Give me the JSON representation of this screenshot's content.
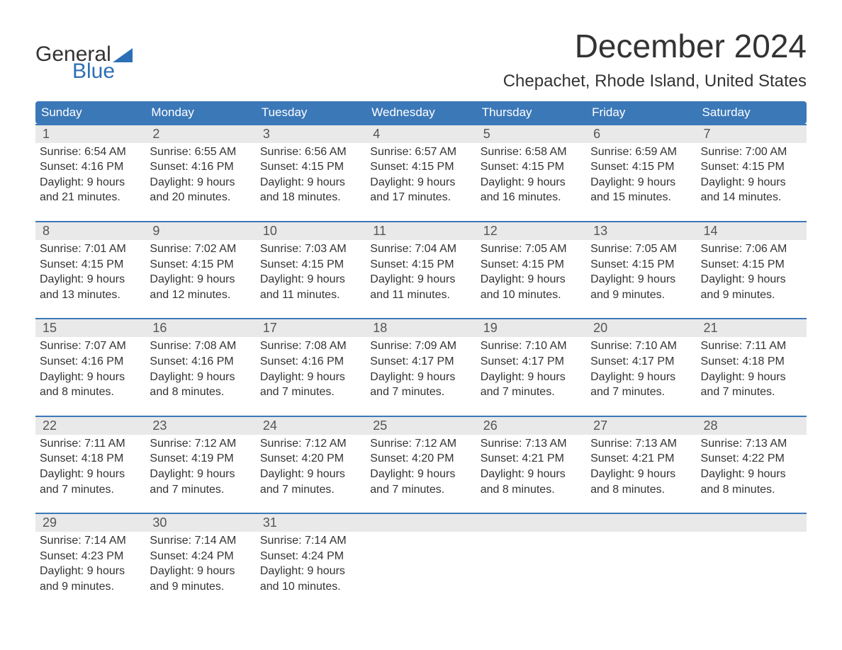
{
  "brand": {
    "word1": "General",
    "word2": "Blue",
    "word1_color": "#333333",
    "word2_color": "#2d6fb5",
    "flag_color": "#2d6fb5"
  },
  "title": "December 2024",
  "location": "Chepachet, Rhode Island, United States",
  "colors": {
    "header_bg": "#3b78b8",
    "header_text": "#ffffff",
    "week_border": "#3b78b8",
    "daynum_bg": "#e9e9e9",
    "daynum_text": "#555555",
    "body_text": "#333333",
    "page_bg": "#ffffff"
  },
  "typography": {
    "title_fontsize": 46,
    "location_fontsize": 24,
    "dayheader_fontsize": 17,
    "daynum_fontsize": 18,
    "body_fontsize": 16,
    "font_family": "Arial, Helvetica, sans-serif"
  },
  "day_labels": [
    "Sunday",
    "Monday",
    "Tuesday",
    "Wednesday",
    "Thursday",
    "Friday",
    "Saturday"
  ],
  "weeks": [
    [
      {
        "num": "1",
        "sunrise": "Sunrise: 6:54 AM",
        "sunset": "Sunset: 4:16 PM",
        "d1": "Daylight: 9 hours",
        "d2": "and 21 minutes."
      },
      {
        "num": "2",
        "sunrise": "Sunrise: 6:55 AM",
        "sunset": "Sunset: 4:16 PM",
        "d1": "Daylight: 9 hours",
        "d2": "and 20 minutes."
      },
      {
        "num": "3",
        "sunrise": "Sunrise: 6:56 AM",
        "sunset": "Sunset: 4:15 PM",
        "d1": "Daylight: 9 hours",
        "d2": "and 18 minutes."
      },
      {
        "num": "4",
        "sunrise": "Sunrise: 6:57 AM",
        "sunset": "Sunset: 4:15 PM",
        "d1": "Daylight: 9 hours",
        "d2": "and 17 minutes."
      },
      {
        "num": "5",
        "sunrise": "Sunrise: 6:58 AM",
        "sunset": "Sunset: 4:15 PM",
        "d1": "Daylight: 9 hours",
        "d2": "and 16 minutes."
      },
      {
        "num": "6",
        "sunrise": "Sunrise: 6:59 AM",
        "sunset": "Sunset: 4:15 PM",
        "d1": "Daylight: 9 hours",
        "d2": "and 15 minutes."
      },
      {
        "num": "7",
        "sunrise": "Sunrise: 7:00 AM",
        "sunset": "Sunset: 4:15 PM",
        "d1": "Daylight: 9 hours",
        "d2": "and 14 minutes."
      }
    ],
    [
      {
        "num": "8",
        "sunrise": "Sunrise: 7:01 AM",
        "sunset": "Sunset: 4:15 PM",
        "d1": "Daylight: 9 hours",
        "d2": "and 13 minutes."
      },
      {
        "num": "9",
        "sunrise": "Sunrise: 7:02 AM",
        "sunset": "Sunset: 4:15 PM",
        "d1": "Daylight: 9 hours",
        "d2": "and 12 minutes."
      },
      {
        "num": "10",
        "sunrise": "Sunrise: 7:03 AM",
        "sunset": "Sunset: 4:15 PM",
        "d1": "Daylight: 9 hours",
        "d2": "and 11 minutes."
      },
      {
        "num": "11",
        "sunrise": "Sunrise: 7:04 AM",
        "sunset": "Sunset: 4:15 PM",
        "d1": "Daylight: 9 hours",
        "d2": "and 11 minutes."
      },
      {
        "num": "12",
        "sunrise": "Sunrise: 7:05 AM",
        "sunset": "Sunset: 4:15 PM",
        "d1": "Daylight: 9 hours",
        "d2": "and 10 minutes."
      },
      {
        "num": "13",
        "sunrise": "Sunrise: 7:05 AM",
        "sunset": "Sunset: 4:15 PM",
        "d1": "Daylight: 9 hours",
        "d2": "and 9 minutes."
      },
      {
        "num": "14",
        "sunrise": "Sunrise: 7:06 AM",
        "sunset": "Sunset: 4:15 PM",
        "d1": "Daylight: 9 hours",
        "d2": "and 9 minutes."
      }
    ],
    [
      {
        "num": "15",
        "sunrise": "Sunrise: 7:07 AM",
        "sunset": "Sunset: 4:16 PM",
        "d1": "Daylight: 9 hours",
        "d2": "and 8 minutes."
      },
      {
        "num": "16",
        "sunrise": "Sunrise: 7:08 AM",
        "sunset": "Sunset: 4:16 PM",
        "d1": "Daylight: 9 hours",
        "d2": "and 8 minutes."
      },
      {
        "num": "17",
        "sunrise": "Sunrise: 7:08 AM",
        "sunset": "Sunset: 4:16 PM",
        "d1": "Daylight: 9 hours",
        "d2": "and 7 minutes."
      },
      {
        "num": "18",
        "sunrise": "Sunrise: 7:09 AM",
        "sunset": "Sunset: 4:17 PM",
        "d1": "Daylight: 9 hours",
        "d2": "and 7 minutes."
      },
      {
        "num": "19",
        "sunrise": "Sunrise: 7:10 AM",
        "sunset": "Sunset: 4:17 PM",
        "d1": "Daylight: 9 hours",
        "d2": "and 7 minutes."
      },
      {
        "num": "20",
        "sunrise": "Sunrise: 7:10 AM",
        "sunset": "Sunset: 4:17 PM",
        "d1": "Daylight: 9 hours",
        "d2": "and 7 minutes."
      },
      {
        "num": "21",
        "sunrise": "Sunrise: 7:11 AM",
        "sunset": "Sunset: 4:18 PM",
        "d1": "Daylight: 9 hours",
        "d2": "and 7 minutes."
      }
    ],
    [
      {
        "num": "22",
        "sunrise": "Sunrise: 7:11 AM",
        "sunset": "Sunset: 4:18 PM",
        "d1": "Daylight: 9 hours",
        "d2": "and 7 minutes."
      },
      {
        "num": "23",
        "sunrise": "Sunrise: 7:12 AM",
        "sunset": "Sunset: 4:19 PM",
        "d1": "Daylight: 9 hours",
        "d2": "and 7 minutes."
      },
      {
        "num": "24",
        "sunrise": "Sunrise: 7:12 AM",
        "sunset": "Sunset: 4:20 PM",
        "d1": "Daylight: 9 hours",
        "d2": "and 7 minutes."
      },
      {
        "num": "25",
        "sunrise": "Sunrise: 7:12 AM",
        "sunset": "Sunset: 4:20 PM",
        "d1": "Daylight: 9 hours",
        "d2": "and 7 minutes."
      },
      {
        "num": "26",
        "sunrise": "Sunrise: 7:13 AM",
        "sunset": "Sunset: 4:21 PM",
        "d1": "Daylight: 9 hours",
        "d2": "and 8 minutes."
      },
      {
        "num": "27",
        "sunrise": "Sunrise: 7:13 AM",
        "sunset": "Sunset: 4:21 PM",
        "d1": "Daylight: 9 hours",
        "d2": "and 8 minutes."
      },
      {
        "num": "28",
        "sunrise": "Sunrise: 7:13 AM",
        "sunset": "Sunset: 4:22 PM",
        "d1": "Daylight: 9 hours",
        "d2": "and 8 minutes."
      }
    ],
    [
      {
        "num": "29",
        "sunrise": "Sunrise: 7:14 AM",
        "sunset": "Sunset: 4:23 PM",
        "d1": "Daylight: 9 hours",
        "d2": "and 9 minutes."
      },
      {
        "num": "30",
        "sunrise": "Sunrise: 7:14 AM",
        "sunset": "Sunset: 4:24 PM",
        "d1": "Daylight: 9 hours",
        "d2": "and 9 minutes."
      },
      {
        "num": "31",
        "sunrise": "Sunrise: 7:14 AM",
        "sunset": "Sunset: 4:24 PM",
        "d1": "Daylight: 9 hours",
        "d2": "and 10 minutes."
      },
      {
        "empty": true
      },
      {
        "empty": true
      },
      {
        "empty": true
      },
      {
        "empty": true
      }
    ]
  ]
}
